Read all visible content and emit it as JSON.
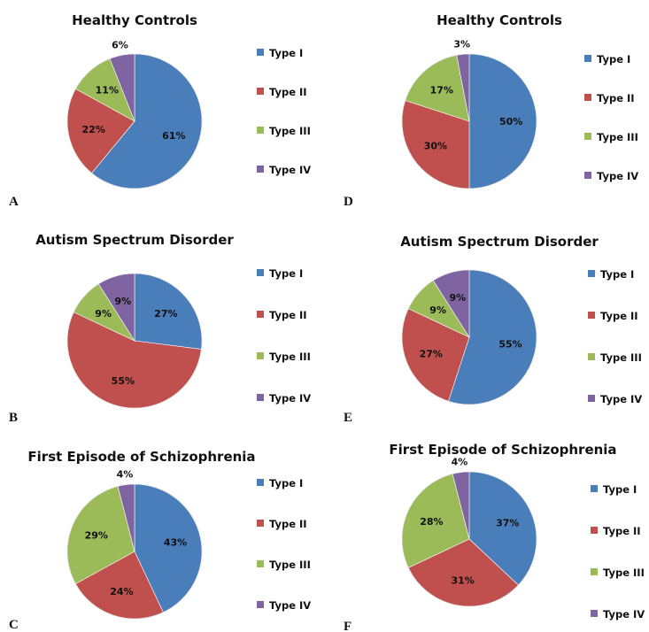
{
  "colors": {
    "Type I": "#4a7ebb",
    "Type II": "#c0504d",
    "Type III": "#9bbb59",
    "Type IV": "#8064a2"
  },
  "chart_data": [
    {
      "type": "pie",
      "panel": "A",
      "title": "Healthy Controls",
      "categories": [
        "Type I",
        "Type II",
        "Type III",
        "Type IV"
      ],
      "values": [
        61,
        22,
        11,
        6
      ],
      "labels": [
        "61%",
        "22%",
        "11%",
        "6%"
      ],
      "legend": [
        "Type I",
        "Type II",
        "Type III",
        "Type IV"
      ],
      "legend_placement": "right"
    },
    {
      "type": "pie",
      "panel": "B",
      "title": "Autism Spectrum Disorder",
      "categories": [
        "Type I",
        "Type II",
        "Type III",
        "Type IV"
      ],
      "values": [
        27,
        55,
        9,
        9
      ],
      "labels": [
        "27%",
        "55%",
        "9%",
        "9%"
      ],
      "legend": [
        "Type I",
        "Type II",
        "Type III",
        "Type IV"
      ],
      "legend_placement": "right"
    },
    {
      "type": "pie",
      "panel": "C",
      "title": "First Episode of Schizophrenia",
      "categories": [
        "Type I",
        "Type II",
        "Type III",
        "Type IV"
      ],
      "values": [
        43,
        24,
        29,
        4
      ],
      "labels": [
        "43%",
        "24%",
        "29%",
        "4%"
      ],
      "legend": [
        "Type I",
        "Type II",
        "Type III",
        "Type IV"
      ],
      "legend_placement": "right"
    },
    {
      "type": "pie",
      "panel": "D",
      "title": "Healthy Controls",
      "categories": [
        "Type I",
        "Type II",
        "Type III",
        "Type IV"
      ],
      "values": [
        50,
        30,
        17,
        3
      ],
      "labels": [
        "50%",
        "30%",
        "17%",
        "3%"
      ],
      "legend": [
        "Type I",
        "Type II",
        "Type III",
        "Type IV"
      ],
      "legend_placement": "right"
    },
    {
      "type": "pie",
      "panel": "E",
      "title": "Autism Spectrum Disorder",
      "categories": [
        "Type I",
        "Type II",
        "Type III",
        "Type IV"
      ],
      "values": [
        55,
        27,
        9,
        9
      ],
      "labels": [
        "55%",
        "27%",
        "9%",
        "9%"
      ],
      "legend": [
        "Type I",
        "Type II",
        "Type III",
        "Type IV"
      ],
      "legend_placement": "right"
    },
    {
      "type": "pie",
      "panel": "F",
      "title": "First Episode of Schizophrenia",
      "categories": [
        "Type I",
        "Type II",
        "Type III",
        "Type IV"
      ],
      "values": [
        37,
        31,
        28,
        4
      ],
      "labels": [
        "37%",
        "31%",
        "28%",
        "4%"
      ],
      "legend": [
        "Type I",
        "Type II",
        "Type III",
        "Type IV"
      ],
      "legend_placement": "right"
    }
  ]
}
